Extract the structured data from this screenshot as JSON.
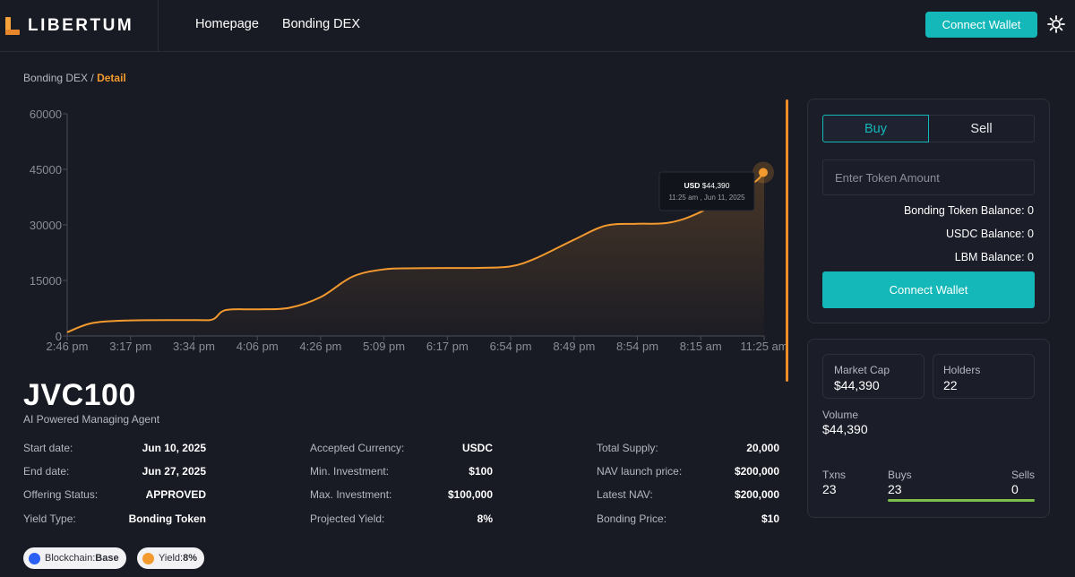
{
  "brand": {
    "name": "LIBERTUM"
  },
  "nav": {
    "items": [
      "Homepage",
      "Bonding DEX"
    ],
    "connect_label": "Connect Wallet",
    "theme_icon": "sun-icon"
  },
  "breadcrumb": {
    "parent": "Bonding DEX",
    "separator": "/",
    "current": "Detail"
  },
  "chart_data": {
    "type": "area",
    "x": [
      "2:46 pm",
      "3:17 pm",
      "3:34 pm",
      "4:06 pm",
      "4:26 pm",
      "5:09 pm",
      "6:17 pm",
      "6:54 pm",
      "8:49 pm",
      "8:54 pm",
      "8:15 am",
      "11:25 am"
    ],
    "y_ticks": [
      0,
      15000,
      30000,
      45000,
      60000
    ],
    "ylim": [
      0,
      60000
    ],
    "series": [
      {
        "points": [
          [
            0,
            1000
          ],
          [
            0.4,
            3500
          ],
          [
            1.0,
            4200
          ],
          [
            2.0,
            4300
          ],
          [
            2.3,
            4500
          ],
          [
            2.5,
            7000
          ],
          [
            3.0,
            7200
          ],
          [
            3.5,
            7600
          ],
          [
            4.0,
            10500
          ],
          [
            4.5,
            16000
          ],
          [
            5.0,
            18000
          ],
          [
            5.5,
            18300
          ],
          [
            6.5,
            18400
          ],
          [
            7.0,
            18800
          ],
          [
            7.4,
            21000
          ],
          [
            8.0,
            26000
          ],
          [
            8.5,
            29800
          ],
          [
            9.0,
            30300
          ],
          [
            9.5,
            30600
          ],
          [
            10.0,
            33500
          ],
          [
            10.8,
            41000
          ],
          [
            11.0,
            44390
          ]
        ]
      }
    ],
    "area_color": "#f39a2f",
    "tooltip": {
      "currency": "USD",
      "value": "$44,390",
      "time": "11:25 am , Jun 11, 2025"
    },
    "grid": false
  },
  "token": {
    "symbol": "JVC100",
    "subtitle": "AI Powered Managing Agent"
  },
  "details": {
    "col1": [
      {
        "label": "Start date:",
        "value": "Jun 10, 2025"
      },
      {
        "label": "End date:",
        "value": "Jun 27, 2025"
      },
      {
        "label": "Offering Status:",
        "value": "APPROVED"
      },
      {
        "label": "Yield Type:",
        "value": "Bonding Token"
      }
    ],
    "col2": [
      {
        "label": "Accepted Currency:",
        "value": "USDC"
      },
      {
        "label": "Min. Investment:",
        "value": "$100"
      },
      {
        "label": "Max. Investment:",
        "value": "$100,000"
      },
      {
        "label": "Projected Yield:",
        "value": "8%"
      }
    ],
    "col3": [
      {
        "label": "Total Supply:",
        "value": "20,000"
      },
      {
        "label": "NAV launch price:",
        "value": "$200,000"
      },
      {
        "label": "Latest NAV:",
        "value": "$200,000"
      },
      {
        "label": "Bonding Price:",
        "value": "$10"
      }
    ]
  },
  "pills": [
    {
      "label": "Blockchain:",
      "value": "Base",
      "dot_color": "#2b5ff5"
    },
    {
      "label": "Yield:",
      "value": "8%",
      "dot_color": "#f39a2f"
    }
  ],
  "trade": {
    "tab_buy": "Buy",
    "tab_sell": "Sell",
    "input_placeholder": "Enter Token Amount",
    "balances": [
      "Bonding Token Balance: 0",
      "USDC Balance: 0",
      "LBM Balance: 0"
    ],
    "connect_label": "Connect Wallet"
  },
  "stats": {
    "market_cap_label": "Market Cap",
    "market_cap": "$44,390",
    "holders_label": "Holders",
    "holders": "22",
    "volume_label": "Volume",
    "volume": "$44,390",
    "txns_label": "Txns",
    "txns": "23",
    "buys_label": "Buys",
    "buys": "23",
    "sells_label": "Sells",
    "sells": "0",
    "buy_fraction": 1.0
  }
}
